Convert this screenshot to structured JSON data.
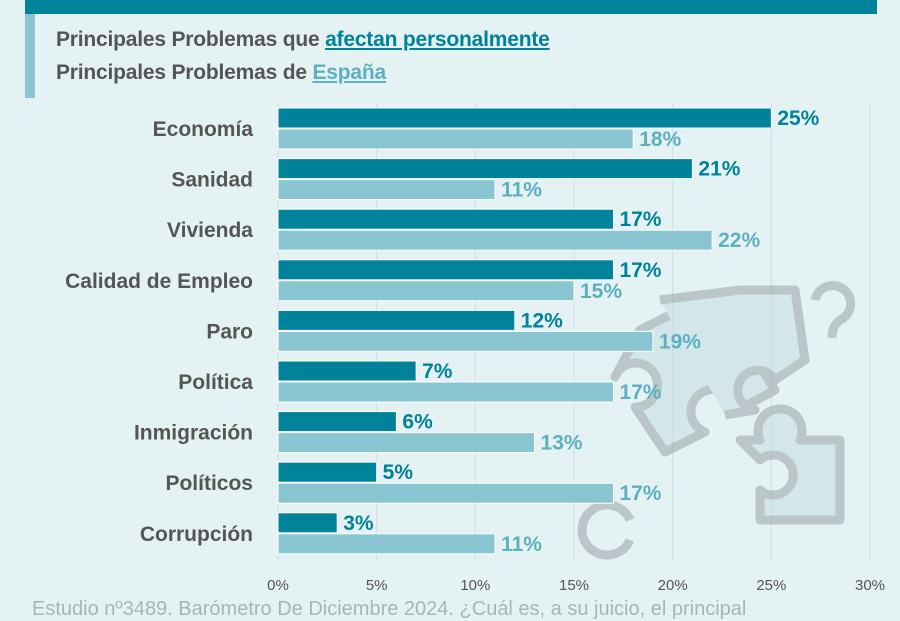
{
  "legend": {
    "line1_prefix": "Principales Problemas que ",
    "line1_key": "afectan personalmente",
    "line2_prefix": "Principales Problemas de ",
    "line2_key": "España"
  },
  "footnote": "Estudio nº3489. Barómetro De Diciembre 2024. ¿Cuál es, a su juicio, el principal",
  "chart_data": {
    "type": "bar",
    "orientation": "horizontal",
    "categories": [
      "Economía",
      "Sanidad",
      "Vivienda",
      "Calidad de Empleo",
      "Paro",
      "Política",
      "Inmigración",
      "Políticos",
      "Corrupción"
    ],
    "series": [
      {
        "name": "afectan personalmente",
        "color": "#00829b",
        "values": [
          25,
          21,
          17,
          17,
          12,
          7,
          6,
          5,
          3
        ]
      },
      {
        "name": "España",
        "color": "#8ac6d2",
        "values": [
          18,
          11,
          22,
          15,
          19,
          17,
          13,
          17,
          11
        ]
      }
    ],
    "xlim": [
      0,
      30
    ],
    "xticks": [
      "0%",
      "5%",
      "10%",
      "15%",
      "20%",
      "25%",
      "30%"
    ],
    "grid": true,
    "legend_position": "top-left"
  }
}
